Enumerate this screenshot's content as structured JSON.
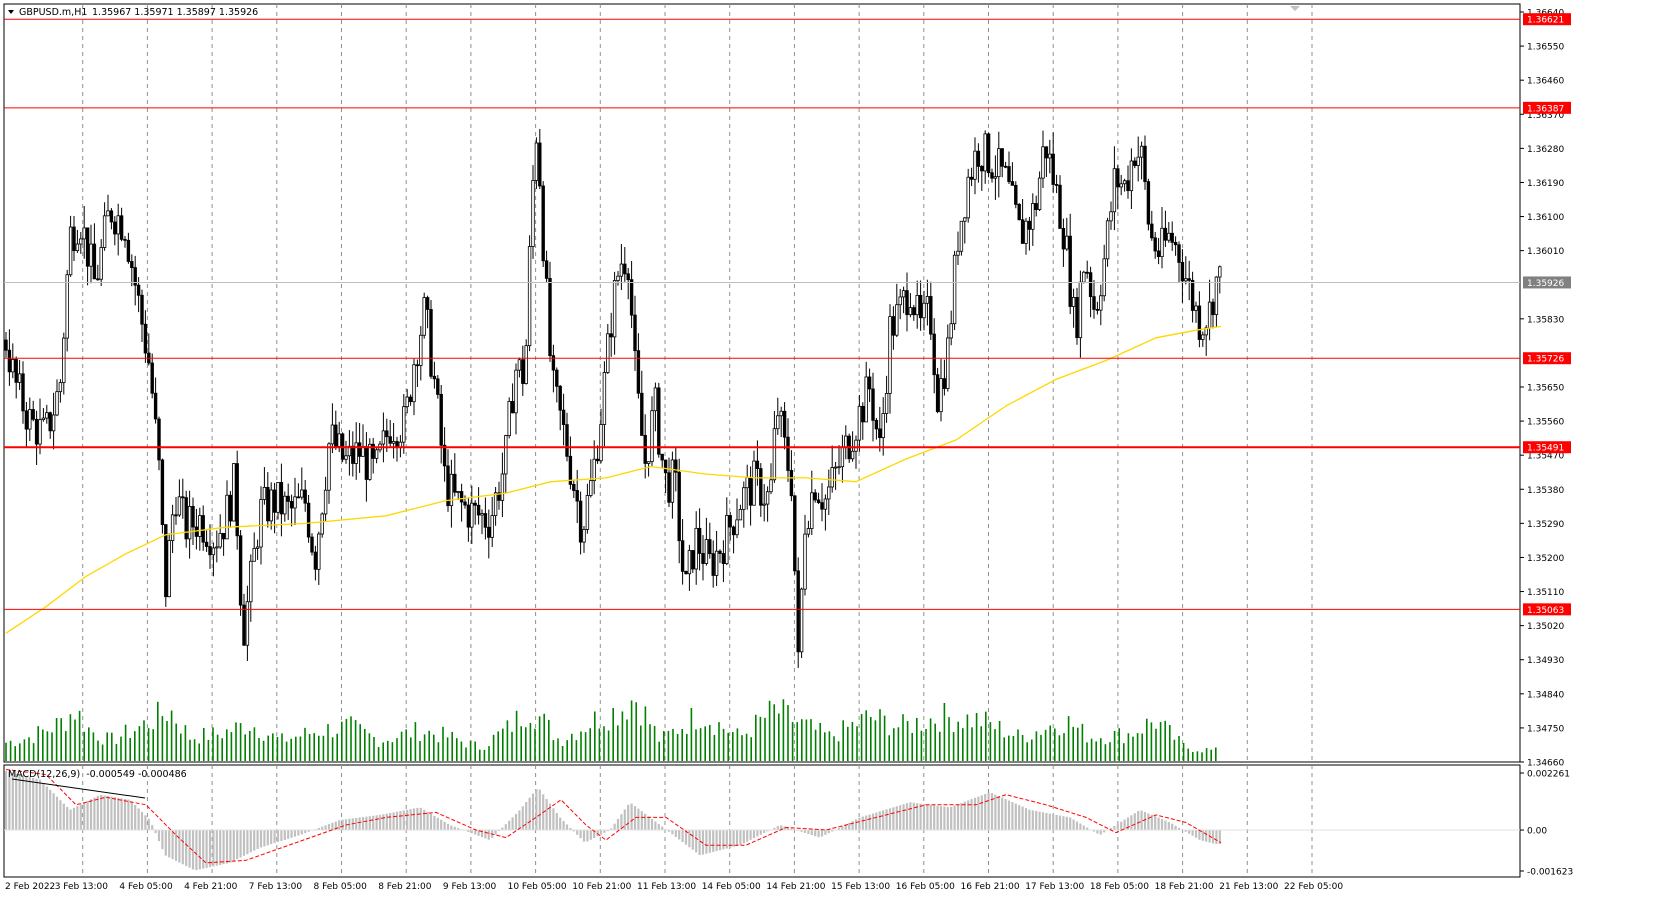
{
  "header": {
    "symbol": "GBPUSD.m,H1",
    "ohlc": "1.35967 1.35971 1.35897 1.35926"
  },
  "macd": {
    "label_prefix": "MACD(12,26,9)",
    "label_values": "-0.000549 -0.000486",
    "scale_labels": [
      "0.002261",
      "0.00",
      "-0.001623"
    ]
  },
  "colors": {
    "candle": "#000000",
    "volume": "#008000",
    "ma": "#ffd700",
    "level": "#ff0000",
    "signal": "#ff0000",
    "histogram": "#c0c0c0"
  },
  "chart_data": {
    "type": "candlestick",
    "symbol": "GBPUSD.m",
    "timeframe": "H1",
    "price_axis_labels": [
      "1.36640",
      "1.36550",
      "1.36460",
      "1.36370",
      "1.36280",
      "1.36190",
      "1.36100",
      "1.36010",
      "1.35830",
      "1.35650",
      "1.35560",
      "1.35470",
      "1.35380",
      "1.35290",
      "1.35200",
      "1.35110",
      "1.35020",
      "1.34930",
      "1.34840",
      "1.34750",
      "1.34660"
    ],
    "ylim": [
      1.3466,
      1.3664
    ],
    "time_axis_labels": [
      "2 Feb 2022",
      "3 Feb 13:00",
      "4 Feb 05:00",
      "4 Feb 21:00",
      "7 Feb 13:00",
      "8 Feb 05:00",
      "8 Feb 21:00",
      "9 Feb 13:00",
      "10 Feb 05:00",
      "10 Feb 21:00",
      "11 Feb 13:00",
      "14 Feb 05:00",
      "14 Feb 21:00",
      "15 Feb 13:00",
      "16 Feb 05:00",
      "16 Feb 21:00",
      "17 Feb 13:00",
      "18 Feb 05:00",
      "18 Feb 21:00",
      "21 Feb 13:00",
      "22 Feb 05:00"
    ],
    "horizontal_levels": [
      {
        "price": 1.36621,
        "label": "1.36621",
        "bold": false
      },
      {
        "price": 1.36387,
        "label": "1.36387",
        "bold": false
      },
      {
        "price": 1.35726,
        "label": "1.35726",
        "bold": false
      },
      {
        "price": 1.35491,
        "label": "1.35491",
        "bold": true
      },
      {
        "price": 1.35063,
        "label": "1.35063",
        "bold": false
      }
    ],
    "current_price": {
      "price": 1.35926,
      "label": "1.35926"
    },
    "close_path": [
      [
        0,
        1.3585
      ],
      [
        15,
        1.3566
      ],
      [
        30,
        1.3556
      ],
      [
        45,
        1.3552
      ],
      [
        60,
        1.3565
      ],
      [
        70,
        1.3605
      ],
      [
        80,
        1.361
      ],
      [
        95,
        1.3592
      ],
      [
        110,
        1.3612
      ],
      [
        125,
        1.3608
      ],
      [
        140,
        1.3585
      ],
      [
        150,
        1.357
      ],
      [
        160,
        1.354
      ],
      [
        165,
        1.351
      ],
      [
        175,
        1.3538
      ],
      [
        185,
        1.3528
      ],
      [
        200,
        1.353
      ],
      [
        215,
        1.3525
      ],
      [
        225,
        1.353
      ],
      [
        235,
        1.354
      ],
      [
        243,
        1.35
      ],
      [
        250,
        1.3512
      ],
      [
        260,
        1.3532
      ],
      [
        275,
        1.3535
      ],
      [
        290,
        1.3532
      ],
      [
        305,
        1.3535
      ],
      [
        315,
        1.352
      ],
      [
        330,
        1.3552
      ],
      [
        345,
        1.3545
      ],
      [
        360,
        1.3548
      ],
      [
        375,
        1.3542
      ],
      [
        390,
        1.3555
      ],
      [
        405,
        1.3555
      ],
      [
        415,
        1.3574
      ],
      [
        425,
        1.3585
      ],
      [
        435,
        1.3565
      ],
      [
        445,
        1.354
      ],
      [
        455,
        1.3535
      ],
      [
        470,
        1.3532
      ],
      [
        490,
        1.353
      ],
      [
        505,
        1.3545
      ],
      [
        515,
        1.357
      ],
      [
        525,
        1.3568
      ],
      [
        532,
        1.3615
      ],
      [
        537,
        1.3635
      ],
      [
        545,
        1.3595
      ],
      [
        552,
        1.3565
      ],
      [
        562,
        1.3555
      ],
      [
        572,
        1.3542
      ],
      [
        582,
        1.3528
      ],
      [
        592,
        1.354
      ],
      [
        602,
        1.356
      ],
      [
        612,
        1.3585
      ],
      [
        620,
        1.3598
      ],
      [
        628,
        1.36
      ],
      [
        636,
        1.3565
      ],
      [
        645,
        1.3545
      ],
      [
        655,
        1.356
      ],
      [
        665,
        1.354
      ],
      [
        675,
        1.354
      ],
      [
        685,
        1.351
      ],
      [
        695,
        1.3525
      ],
      [
        710,
        1.3518
      ],
      [
        725,
        1.3525
      ],
      [
        740,
        1.3535
      ],
      [
        755,
        1.354
      ],
      [
        770,
        1.3535
      ],
      [
        777,
        1.356
      ],
      [
        785,
        1.3548
      ],
      [
        792,
        1.354
      ],
      [
        798,
        1.349
      ],
      [
        805,
        1.353
      ],
      [
        815,
        1.354
      ],
      [
        825,
        1.3535
      ],
      [
        840,
        1.3545
      ],
      [
        855,
        1.3555
      ],
      [
        870,
        1.3565
      ],
      [
        880,
        1.3548
      ],
      [
        890,
        1.358
      ],
      [
        900,
        1.3585
      ],
      [
        910,
        1.3592
      ],
      [
        920,
        1.358
      ],
      [
        930,
        1.3585
      ],
      [
        938,
        1.3562
      ],
      [
        948,
        1.3575
      ],
      [
        958,
        1.3605
      ],
      [
        968,
        1.362
      ],
      [
        978,
        1.3628
      ],
      [
        990,
        1.3625
      ],
      [
        1005,
        1.362
      ],
      [
        1020,
        1.3605
      ],
      [
        1035,
        1.3612
      ],
      [
        1045,
        1.363
      ],
      [
        1055,
        1.3618
      ],
      [
        1065,
        1.3605
      ],
      [
        1075,
        1.358
      ],
      [
        1085,
        1.36
      ],
      [
        1095,
        1.3585
      ],
      [
        1105,
        1.36
      ],
      [
        1115,
        1.362
      ],
      [
        1125,
        1.3618
      ],
      [
        1135,
        1.3628
      ],
      [
        1142,
        1.3625
      ],
      [
        1150,
        1.3605
      ],
      [
        1160,
        1.36
      ],
      [
        1170,
        1.3605
      ],
      [
        1180,
        1.36
      ],
      [
        1190,
        1.359
      ],
      [
        1200,
        1.3582
      ],
      [
        1210,
        1.3585
      ],
      [
        1215,
        1.3593
      ]
    ],
    "moving_average_path": [
      [
        0,
        1.35
      ],
      [
        40,
        1.3507
      ],
      [
        80,
        1.3515
      ],
      [
        120,
        1.3521
      ],
      [
        160,
        1.3526
      ],
      [
        220,
        1.3528
      ],
      [
        300,
        1.3529
      ],
      [
        380,
        1.3531
      ],
      [
        440,
        1.3535
      ],
      [
        500,
        1.3537
      ],
      [
        545,
        1.354
      ],
      [
        600,
        1.3541
      ],
      [
        645,
        1.3544
      ],
      [
        700,
        1.3542
      ],
      [
        750,
        1.3541
      ],
      [
        800,
        1.3541
      ],
      [
        850,
        1.354
      ],
      [
        900,
        1.3546
      ],
      [
        950,
        1.3551
      ],
      [
        1000,
        1.356
      ],
      [
        1050,
        1.3567
      ],
      [
        1100,
        1.3572
      ],
      [
        1150,
        1.3578
      ],
      [
        1190,
        1.358
      ],
      [
        1215,
        1.3581
      ]
    ],
    "volume_envelope": [
      [
        0,
        0.25
      ],
      [
        30,
        0.35
      ],
      [
        60,
        0.55
      ],
      [
        75,
        0.75
      ],
      [
        90,
        0.45
      ],
      [
        110,
        0.3
      ],
      [
        140,
        0.5
      ],
      [
        170,
        0.75
      ],
      [
        190,
        0.35
      ],
      [
        220,
        0.4
      ],
      [
        250,
        0.55
      ],
      [
        280,
        0.3
      ],
      [
        320,
        0.45
      ],
      [
        350,
        0.5
      ],
      [
        380,
        0.3
      ],
      [
        420,
        0.45
      ],
      [
        450,
        0.35
      ],
      [
        480,
        0.2
      ],
      [
        510,
        0.5
      ],
      [
        530,
        0.8
      ],
      [
        560,
        0.3
      ],
      [
        600,
        0.65
      ],
      [
        620,
        0.75
      ],
      [
        635,
        0.95
      ],
      [
        660,
        0.3
      ],
      [
        700,
        0.7
      ],
      [
        740,
        0.35
      ],
      [
        775,
        0.75
      ],
      [
        800,
        0.55
      ],
      [
        830,
        0.35
      ],
      [
        870,
        0.65
      ],
      [
        900,
        0.5
      ],
      [
        940,
        0.65
      ],
      [
        980,
        0.6
      ],
      [
        1020,
        0.35
      ],
      [
        1065,
        0.6
      ],
      [
        1090,
        0.35
      ],
      [
        1130,
        0.4
      ],
      [
        1155,
        0.6
      ],
      [
        1185,
        0.2
      ],
      [
        1215,
        0.15
      ]
    ],
    "macd_histogram_envelope": [
      [
        0,
        0.0024
      ],
      [
        40,
        0.002
      ],
      [
        70,
        0.0008
      ],
      [
        100,
        0.0014
      ],
      [
        130,
        0.0012
      ],
      [
        150,
        0.0004
      ],
      [
        165,
        -0.001
      ],
      [
        195,
        -0.0016
      ],
      [
        230,
        -0.0013
      ],
      [
        260,
        -0.0007
      ],
      [
        300,
        -0.0002
      ],
      [
        340,
        0.0004
      ],
      [
        380,
        0.0006
      ],
      [
        420,
        0.0009
      ],
      [
        450,
        0.0002
      ],
      [
        490,
        -0.0004
      ],
      [
        520,
        0.0008
      ],
      [
        538,
        0.0017
      ],
      [
        560,
        0.0005
      ],
      [
        585,
        -0.0005
      ],
      [
        610,
        0.0
      ],
      [
        630,
        0.0011
      ],
      [
        660,
        0.0002
      ],
      [
        700,
        -0.001
      ],
      [
        740,
        -0.0006
      ],
      [
        780,
        0.0002
      ],
      [
        820,
        -0.0003
      ],
      [
        860,
        0.0005
      ],
      [
        910,
        0.0011
      ],
      [
        950,
        0.0009
      ],
      [
        990,
        0.0015
      ],
      [
        1030,
        0.0008
      ],
      [
        1070,
        0.0005
      ],
      [
        1100,
        -0.0002
      ],
      [
        1140,
        0.0008
      ],
      [
        1170,
        0.0003
      ],
      [
        1200,
        -0.0004
      ],
      [
        1215,
        -0.00055
      ]
    ],
    "macd_signal_path": [
      [
        0,
        0.0024
      ],
      [
        40,
        0.0022
      ],
      [
        70,
        0.001
      ],
      [
        100,
        0.0013
      ],
      [
        140,
        0.001
      ],
      [
        170,
        -0.0002
      ],
      [
        200,
        -0.0013
      ],
      [
        240,
        -0.0012
      ],
      [
        290,
        -0.0005
      ],
      [
        340,
        0.0002
      ],
      [
        380,
        0.0005
      ],
      [
        430,
        0.0007
      ],
      [
        470,
        0.0
      ],
      [
        500,
        -0.0003
      ],
      [
        530,
        0.0005
      ],
      [
        555,
        0.0012
      ],
      [
        580,
        0.0002
      ],
      [
        600,
        -0.0004
      ],
      [
        630,
        0.0005
      ],
      [
        660,
        0.0005
      ],
      [
        700,
        -0.0006
      ],
      [
        740,
        -0.0006
      ],
      [
        780,
        0.0001
      ],
      [
        820,
        0.0
      ],
      [
        860,
        0.0004
      ],
      [
        920,
        0.001
      ],
      [
        970,
        0.001
      ],
      [
        1000,
        0.0014
      ],
      [
        1040,
        0.001
      ],
      [
        1080,
        0.0005
      ],
      [
        1110,
        -0.0001
      ],
      [
        1150,
        0.0006
      ],
      [
        1180,
        0.0003
      ],
      [
        1215,
        -0.0005
      ]
    ],
    "macd_ylim": [
      -0.001623,
      0.002261
    ]
  }
}
